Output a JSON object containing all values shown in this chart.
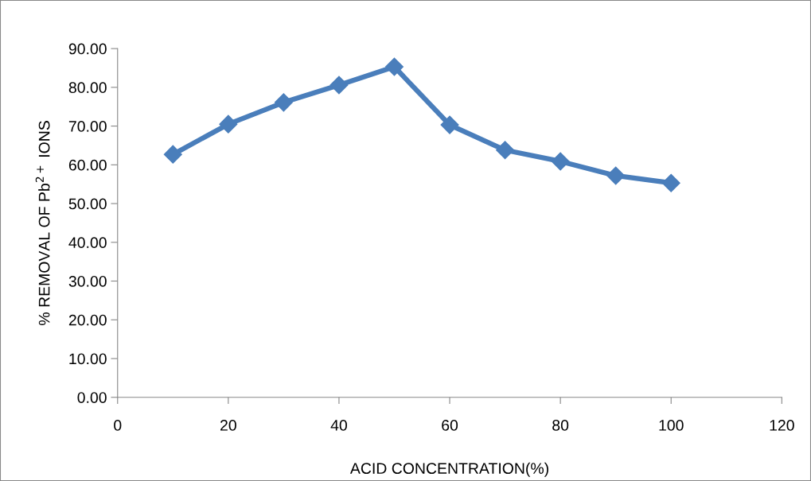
{
  "chart_data": {
    "type": "line",
    "xlabel": "ACID CONCENTRATION(%)",
    "ylabel": "% REMOVAL OF Pb$^{2+}$ IONS",
    "x": [
      10,
      20,
      30,
      40,
      50,
      60,
      70,
      80,
      90,
      100
    ],
    "series": [
      {
        "color": "#4a7ebb",
        "values": [
          62.7,
          70.5,
          76.1,
          80.6,
          85.3,
          70.3,
          63.8,
          60.9,
          57.2,
          55.3
        ]
      }
    ],
    "xlim": [
      0,
      120
    ],
    "xticks": [
      0,
      20,
      40,
      60,
      80,
      100,
      120
    ],
    "ylim": [
      0,
      90
    ],
    "yticks": [
      {
        "value": 0,
        "label": "0.00"
      },
      {
        "value": 10,
        "label": "10.00"
      },
      {
        "value": 20,
        "label": "20.00"
      },
      {
        "value": 30,
        "label": "30.00"
      },
      {
        "value": 40,
        "label": "40.00"
      },
      {
        "value": 50,
        "label": "50.00"
      },
      {
        "value": 60,
        "label": "60.00"
      },
      {
        "value": 70,
        "label": "70.00"
      },
      {
        "value": 80,
        "label": "80.00"
      },
      {
        "value": 90,
        "label": "90.00"
      }
    ],
    "grid": false,
    "legend": false,
    "marker": "diamond",
    "line_style": "solid"
  }
}
